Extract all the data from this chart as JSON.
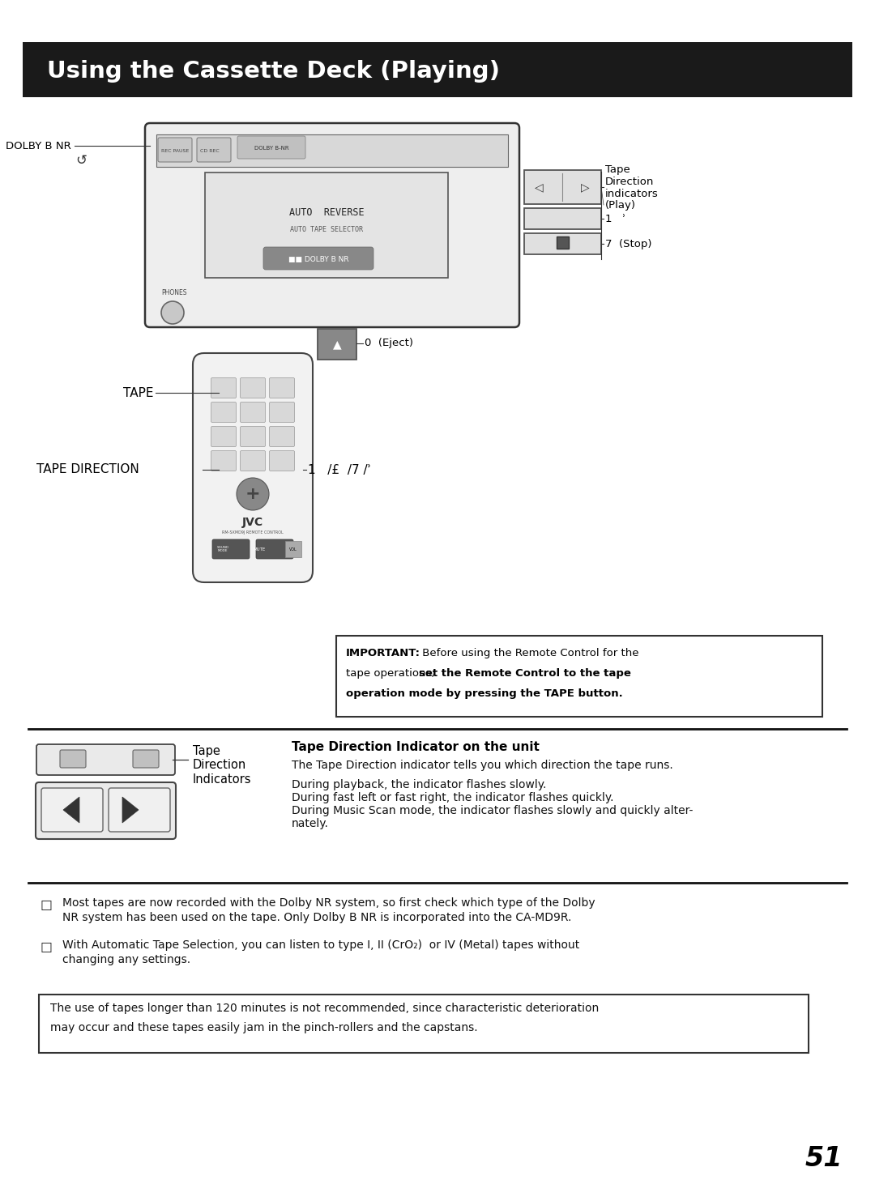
{
  "title": "Using the Cassette Deck (Playing)",
  "title_bg": "#1a1a1a",
  "title_color": "#ffffff",
  "page_number": "51",
  "bg_color": "#ffffff",
  "tape_direction_title": "Tape Direction Indicator on the unit",
  "tape_direction_text1": "The Tape Direction indicator tells you which direction the tape runs.",
  "tape_direction_text2": "During playback, the indicator flashes slowly.",
  "tape_direction_text3": "During fast left or fast right, the indicator flashes quickly.",
  "tape_direction_text4a": "During Music Scan mode, the indicator flashes slowly and quickly alter-",
  "tape_direction_text4b": "nately.",
  "important_bold1": "IMPORTANT:",
  "important_normal1": " Before using the Remote Control for the",
  "important_normal2": "tape operations, ",
  "important_bold2": "set the Remote Control to the tape",
  "important_bold3": "operation mode by pressing the TAPE button.",
  "bullet1a": "Most tapes are now recorded with the Dolby NR system, so first check which type of the Dolby",
  "bullet1b": "NR system has been used on the tape. Only Dolby B NR is incorporated into the CA-MD9R.",
  "bullet2a": "With Automatic Tape Selection, you can listen to type I, II (CrO₂)  or IV (Metal) tapes without",
  "bullet2b": "changing any settings.",
  "note_line1": "The use of tapes longer than 120 minutes is not recommended, since characteristic deterioration",
  "note_line2": "may occur and these tapes easily jam in the pinch-rollers and the capstans.",
  "label_dolby": "DOLBY B NR",
  "label_td_indicators": "Tape\nDirection\nindicators",
  "label_play": "(Play)",
  "label_1play": "1   ʾ",
  "label_7stop": "7  (Stop)",
  "label_0eject": "0  (Eject)",
  "label_tape": "TAPE",
  "label_tape_dir": "TAPE DIRECTION",
  "label_remote_btns": "1   /£  /7 /ʾ",
  "label_td_indicator": "Tape\nDirection\nIndicators"
}
